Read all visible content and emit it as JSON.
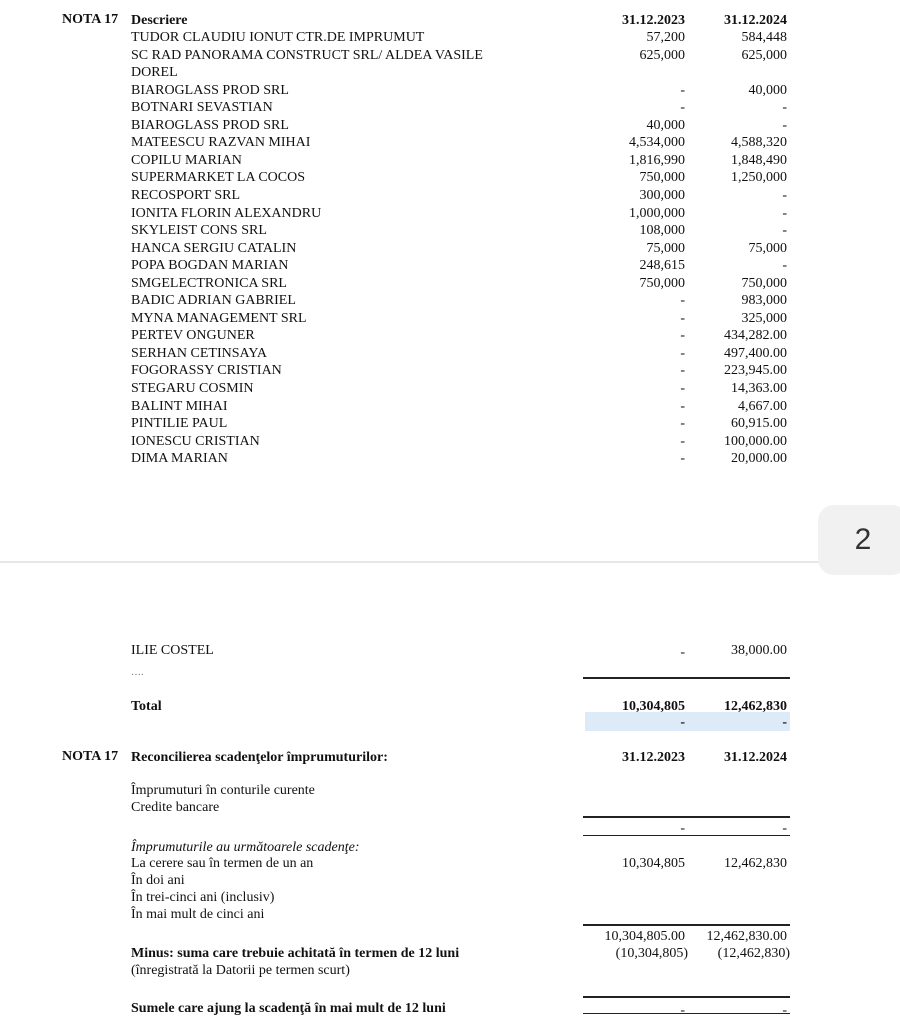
{
  "page1": {
    "note_label": "NOTA 17",
    "header": {
      "description": "Descriere",
      "col1": "31.12.2023",
      "col2": "31.12.2024"
    },
    "rows": [
      {
        "name": "TUDOR CLAUDIU IONUT CTR.DE IMPRUMUT",
        "v2023": "57,200",
        "v2024": "584,448"
      },
      {
        "name": "SC  RAD  PANORAMA  CONSTRUCT  SRL/  ALDEA  VASILE",
        "v2023": "625,000",
        "v2024": "625,000"
      },
      {
        "name": "DOREL",
        "v2023": "",
        "v2024": ""
      },
      {
        "name": "BIAROGLASS PROD SRL",
        "v2023": "-",
        "v2024": "40,000"
      },
      {
        "name": "BOTNARI SEVASTIAN",
        "v2023": "-",
        "v2024": "-"
      },
      {
        "name": "BIAROGLASS PROD SRL",
        "v2023": "40,000",
        "v2024": "-"
      },
      {
        "name": "MATEESCU RAZVAN MIHAI",
        "v2023": "4,534,000",
        "v2024": "4,588,320"
      },
      {
        "name": "COPILU MARIAN",
        "v2023": "1,816,990",
        "v2024": "1,848,490"
      },
      {
        "name": "SUPERMARKET LA COCOS",
        "v2023": "750,000",
        "v2024": "1,250,000"
      },
      {
        "name": "RECOSPORT SRL",
        "v2023": "300,000",
        "v2024": "-"
      },
      {
        "name": "IONITA FLORIN ALEXANDRU",
        "v2023": "1,000,000",
        "v2024": "-"
      },
      {
        "name": "SKYLEIST CONS SRL",
        "v2023": "108,000",
        "v2024": "-"
      },
      {
        "name": "HANCA SERGIU CATALIN",
        "v2023": "75,000",
        "v2024": "75,000"
      },
      {
        "name": "POPA BOGDAN MARIAN",
        "v2023": "248,615",
        "v2024": "-"
      },
      {
        "name": "SMGELECTRONICA SRL",
        "v2023": "750,000",
        "v2024": "750,000"
      },
      {
        "name": "BADIC ADRIAN GABRIEL",
        "v2023": "-",
        "v2024": "983,000"
      },
      {
        "name": "MYNA MANAGEMENT SRL",
        "v2023": "-",
        "v2024": "325,000"
      },
      {
        "name": "PERTEV ONGUNER",
        "v2023": "-",
        "v2024": "434,282.00"
      },
      {
        "name": "SERHAN CETINSAYA",
        "v2023": "-",
        "v2024": "497,400.00"
      },
      {
        "name": "FOGORASSY CRISTIAN",
        "v2023": "-",
        "v2024": "223,945.00"
      },
      {
        "name": "STEGARU COSMIN",
        "v2023": "-",
        "v2024": "14,363.00"
      },
      {
        "name": "BALINT MIHAI",
        "v2023": "-",
        "v2024": "4,667.00"
      },
      {
        "name": "PINTILIE PAUL",
        "v2023": "-",
        "v2024": "60,915.00"
      },
      {
        "name": "IONESCU CRISTIAN",
        "v2023": "-",
        "v2024": "100,000.00"
      },
      {
        "name": "DIMA MARIAN",
        "v2023": "-",
        "v2024": "20,000.00"
      }
    ]
  },
  "page_number": "2",
  "page2": {
    "ilie": {
      "name": "ILIE COSTEL",
      "v2023": "-",
      "v2024": "38,000.00"
    },
    "ellipsis": "….",
    "total": {
      "label": "Total",
      "v2023": "10,304,805",
      "v2024": "12,462,830",
      "sub2023": "-",
      "sub2024": "-"
    },
    "reconciliation": {
      "note_label": "NOTA 17",
      "title": "Reconcilierea scadenţelor împrumuturilor:",
      "col1": "31.12.2023",
      "col2": "31.12.2024",
      "current_accounts": "Împrumuturi în conturile curente",
      "bank_credits": "Credite bancare",
      "subtotal2023": "-",
      "subtotal2024": "-",
      "maturities_title": "Împrumuturile au următoarele scadenţe:",
      "on_demand": {
        "label": "La cerere sau în termen de un an",
        "v2023": "10,304,805",
        "v2024": "12,462,830"
      },
      "two_years": "În doi ani",
      "three_five": "În trei-cinci ani (inclusiv)",
      "over_five": "În mai mult de cinci ani",
      "sum2023": "10,304,805.00",
      "sum2024": "12,462,830.00",
      "minus": {
        "label": "Minus: suma care trebuie achitată în termen de 12 luni",
        "v2023": "(10,304,805)",
        "v2024": "(12,462,830)"
      },
      "minus_note": "(înregistrată la Datorii pe termen scurt)",
      "over12": {
        "label": "Sumele care ajung la scadenţă în mai mult de 12 luni",
        "v2023": "-",
        "v2024": "-"
      }
    }
  }
}
